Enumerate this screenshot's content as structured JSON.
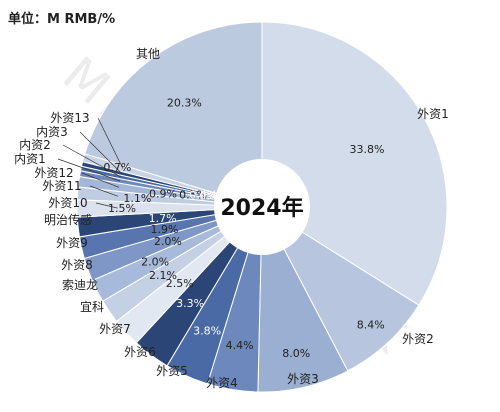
{
  "unit": "单位：M RMB/%",
  "watermark": "MIR DATABANK",
  "chart_data": {
    "type": "pie",
    "title": "2024年",
    "slices": [
      {
        "label": "外资1",
        "value": 33.8,
        "pct": "33.8%",
        "color": "#d3dcea"
      },
      {
        "label": "外资2",
        "value": 8.4,
        "pct": "8.4%",
        "color": "#b7c5de"
      },
      {
        "label": "外资3",
        "value": 8.0,
        "pct": "8.0%",
        "color": "#9aafd1"
      },
      {
        "label": "外资4",
        "value": 4.4,
        "pct": "4.4%",
        "color": "#6d88bd"
      },
      {
        "label": "外资5",
        "value": 3.8,
        "pct": "3.8%",
        "color": "#4a6aa5"
      },
      {
        "label": "外资6",
        "value": 3.3,
        "pct": "3.3%",
        "color": "#2b4576"
      },
      {
        "label": "外资7",
        "value": 2.5,
        "pct": "2.5%",
        "color": "#e2e8f2"
      },
      {
        "label": "宜科",
        "value": 2.1,
        "pct": "2.1%",
        "color": "#c4d0e4"
      },
      {
        "label": "索迪龙",
        "value": 2.0,
        "pct": "2.0%",
        "color": "#a8badb"
      },
      {
        "label": "外资8",
        "value": 2.0,
        "pct": "2.0%",
        "color": "#7f97c6"
      },
      {
        "label": "外资9",
        "value": 1.9,
        "pct": "1.9%",
        "color": "#5875af"
      },
      {
        "label": "明治传感",
        "value": 1.7,
        "pct": "1.7%",
        "color": "#2b4576"
      },
      {
        "label": "外资10",
        "value": 1.5,
        "pct": "1.5%",
        "color": "#dbe2ee"
      },
      {
        "label": "外资11",
        "value": 1.1,
        "pct": "1.1%",
        "color": "#c0cce2"
      },
      {
        "label": "外资12",
        "value": 0.9,
        "pct": "0.9%",
        "color": "#a3b6d8"
      },
      {
        "label": "内资1",
        "value": 0.5,
        "pct": "0.5%",
        "color": "#6d88bd"
      },
      {
        "label": "内资2",
        "value": 0.4,
        "pct": "0.4%",
        "color": "#4a6aa5"
      },
      {
        "label": "内资3",
        "value": 0.4,
        "pct": "0.4%",
        "color": "#2b4576"
      },
      {
        "label": "外资13",
        "value": 0.7,
        "pct": "0.7%",
        "color": "#c8d3e6"
      },
      {
        "label": "其他",
        "value": 20.3,
        "pct": "20.3%",
        "color": "#bccae0"
      }
    ]
  }
}
